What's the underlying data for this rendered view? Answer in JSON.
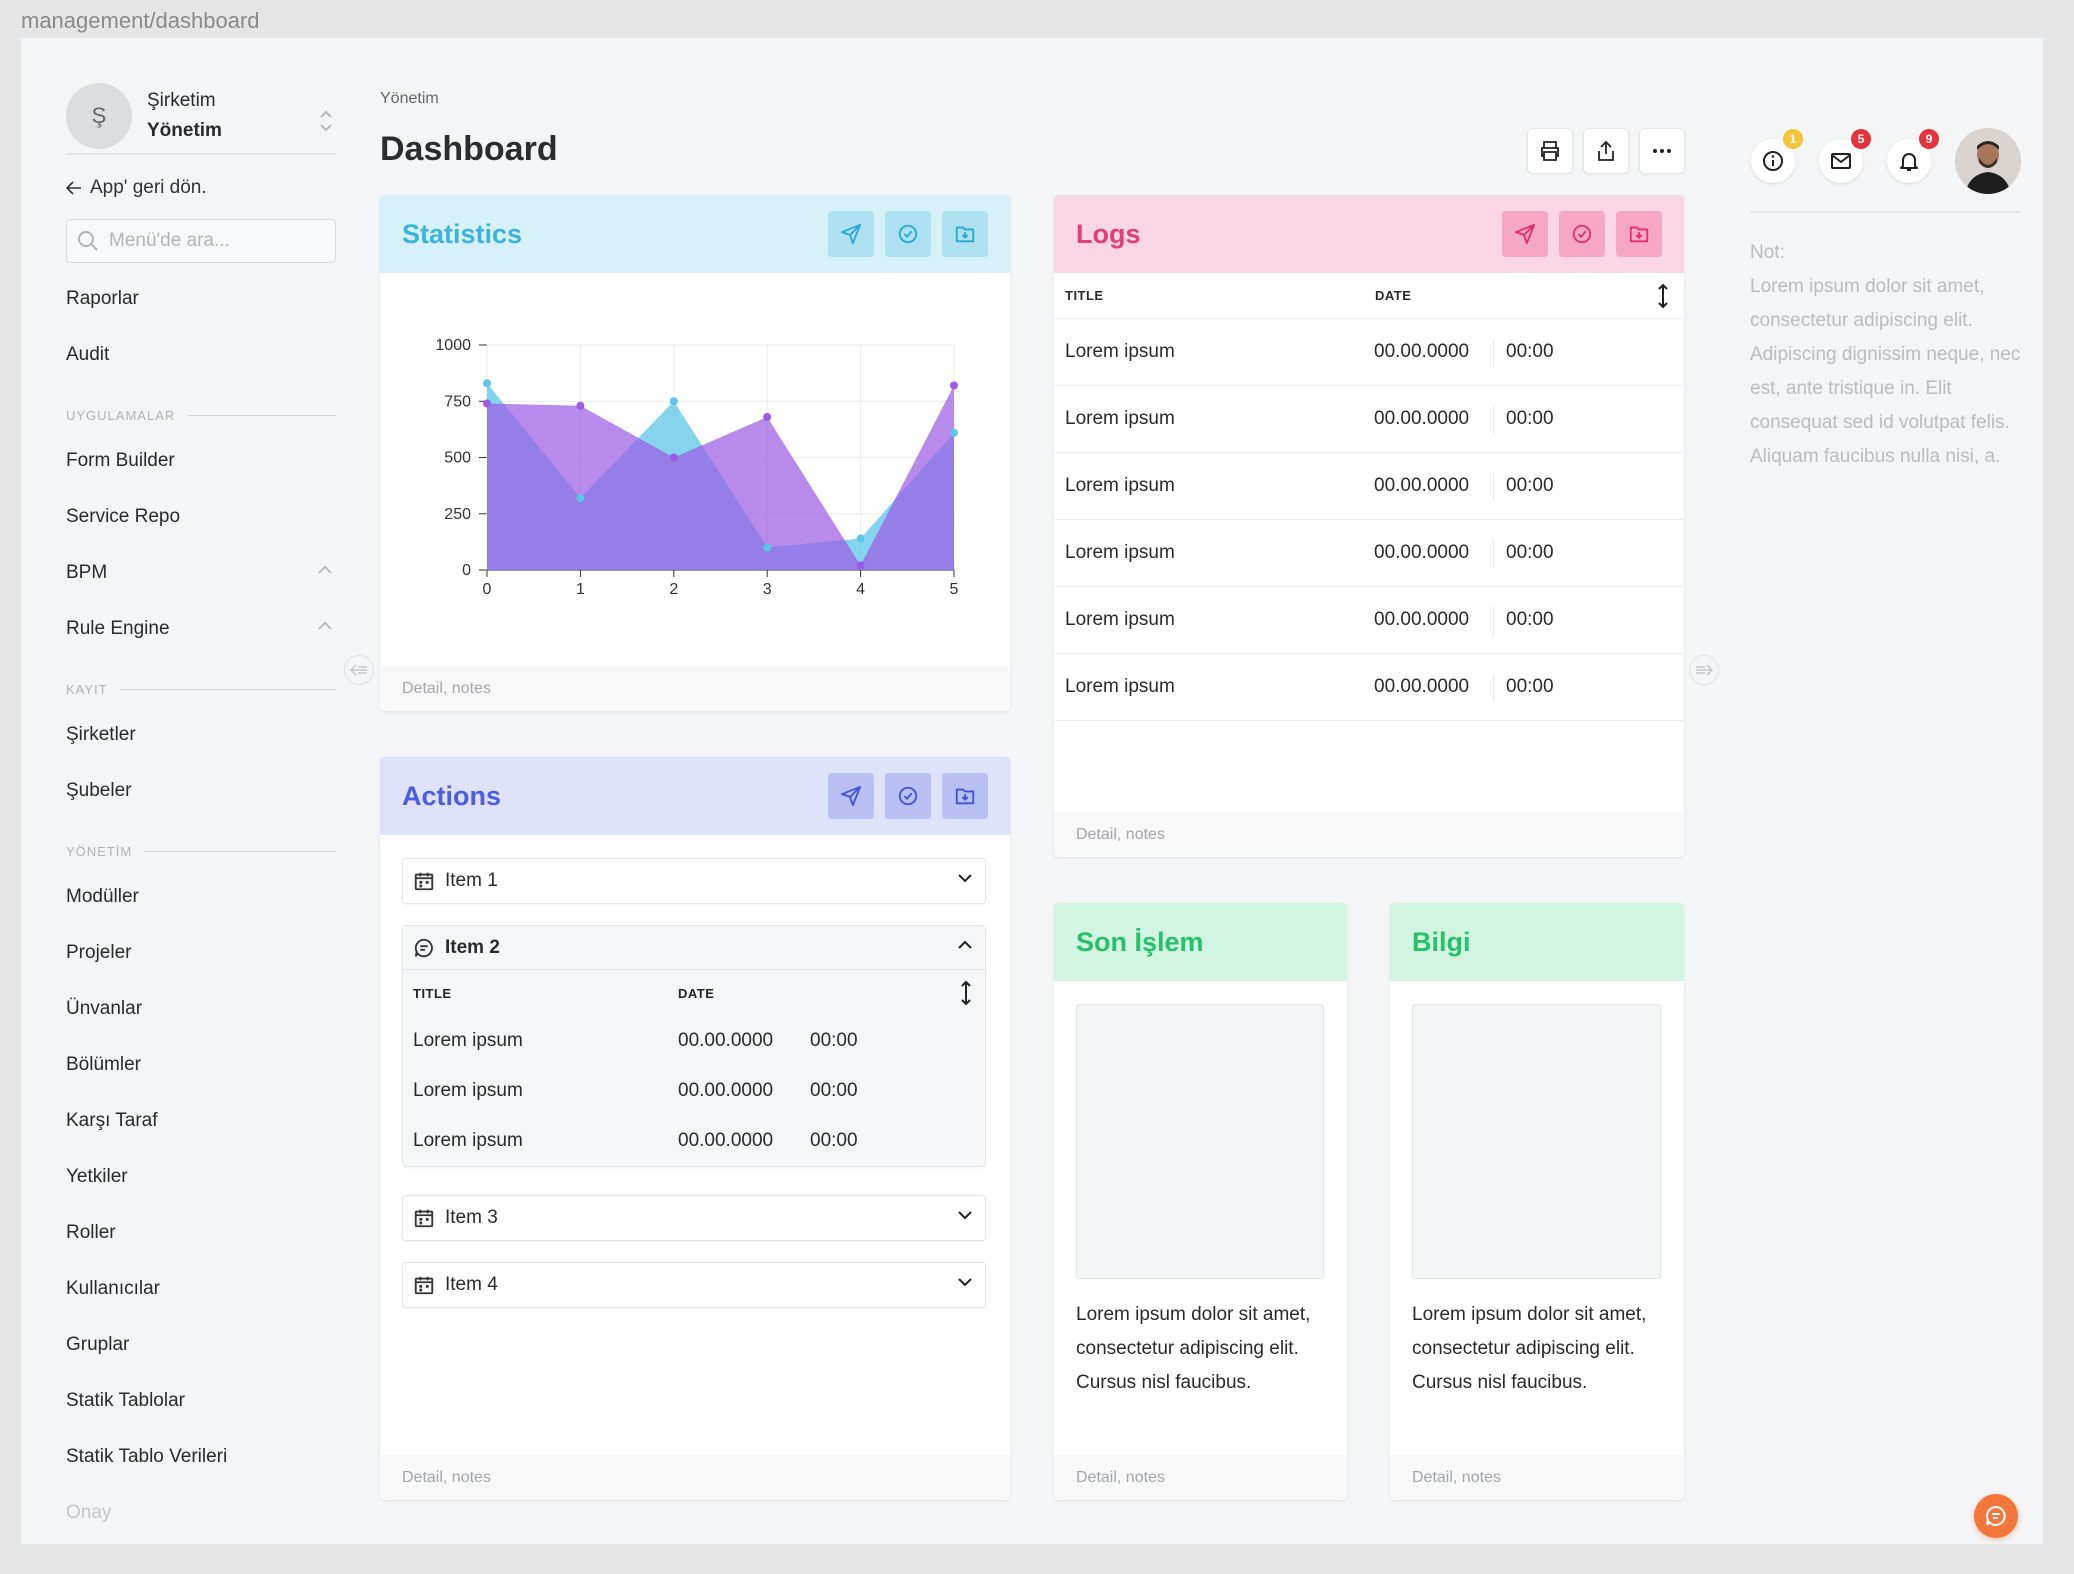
{
  "window": {
    "title": "management/dashboard"
  },
  "sidebar": {
    "company_initial": "Ş",
    "company_name": "Şirketim",
    "company_role": "Yönetim",
    "back_label": "App' geri dön.",
    "search_placeholder": "Menü'de ara...",
    "items_top": [
      {
        "label": "Raporlar"
      },
      {
        "label": "Audit"
      }
    ],
    "sections": [
      {
        "title": "UYGULAMALAR",
        "items": [
          {
            "label": "Form Builder"
          },
          {
            "label": "Service Repo"
          },
          {
            "label": "BPM"
          },
          {
            "label": "Rule Engine"
          }
        ]
      },
      {
        "title": "KAYIT",
        "items": [
          {
            "label": "Şirketler"
          },
          {
            "label": "Şubeler"
          }
        ]
      },
      {
        "title": "YÖNETİM",
        "items": [
          {
            "label": "Modüller"
          },
          {
            "label": "Projeler"
          },
          {
            "label": "Ünvanlar"
          },
          {
            "label": "Bölümler"
          },
          {
            "label": "Karşı Taraf"
          },
          {
            "label": "Yetkiler"
          },
          {
            "label": "Roller"
          },
          {
            "label": "Kullanıcılar"
          },
          {
            "label": "Gruplar"
          },
          {
            "label": "Statik Tablolar"
          },
          {
            "label": "Statik Tablo Verileri"
          },
          {
            "label": "Onay"
          }
        ]
      }
    ]
  },
  "header": {
    "breadcrumb": "Yönetim",
    "title": "Dashboard"
  },
  "topbar": {
    "badges": {
      "info": "1",
      "mail": "5",
      "notifications": "9"
    },
    "badge_colors": {
      "info": "#f5c43b",
      "mail": "#e5333b",
      "notifications": "#e5333b"
    }
  },
  "statistics": {
    "title": "Statistics",
    "footer": "Detail, notes"
  },
  "chart_data": {
    "type": "area",
    "x": [
      0,
      1,
      2,
      3,
      4,
      5
    ],
    "ylim": [
      0,
      1000
    ],
    "yticks": [
      0,
      250,
      500,
      750,
      1000
    ],
    "xticks": [
      0,
      1,
      2,
      3,
      4,
      5
    ],
    "series": [
      {
        "color": "#5cc6e8",
        "values": [
          830,
          320,
          750,
          100,
          140,
          610
        ]
      },
      {
        "color": "#9b5de5",
        "values": [
          740,
          730,
          500,
          680,
          20,
          820
        ]
      }
    ],
    "grid": true
  },
  "logs": {
    "title": "Logs",
    "columns": [
      "TITLE",
      "DATE"
    ],
    "rows": [
      {
        "title": "Lorem ipsum",
        "date": "00.00.0000",
        "time": "00:00"
      },
      {
        "title": "Lorem ipsum",
        "date": "00.00.0000",
        "time": "00:00"
      },
      {
        "title": "Lorem ipsum",
        "date": "00.00.0000",
        "time": "00:00"
      },
      {
        "title": "Lorem ipsum",
        "date": "00.00.0000",
        "time": "00:00"
      },
      {
        "title": "Lorem ipsum",
        "date": "00.00.0000",
        "time": "00:00"
      },
      {
        "title": "Lorem ipsum",
        "date": "00.00.0000",
        "time": "00:00"
      }
    ],
    "footer": "Detail, notes"
  },
  "actions": {
    "title": "Actions",
    "items": [
      {
        "label": "Item 1"
      },
      {
        "label": "Item 2"
      },
      {
        "label": "Item 3"
      },
      {
        "label": "Item 4"
      }
    ],
    "expanded": {
      "columns": [
        "TITLE",
        "DATE"
      ],
      "rows": [
        {
          "title": "Lorem ipsum",
          "date": "00.00.0000",
          "time": "00:00"
        },
        {
          "title": "Lorem ipsum",
          "date": "00.00.0000",
          "time": "00:00"
        },
        {
          "title": "Lorem ipsum",
          "date": "00.00.0000",
          "time": "00:00"
        }
      ]
    },
    "footer": "Detail, notes"
  },
  "son_islem": {
    "title": "Son İşlem",
    "text": "Lorem ipsum dolor sit amet, consectetur adipiscing elit. Cursus nisl faucibus.",
    "footer": "Detail, notes"
  },
  "bilgi": {
    "title": "Bilgi",
    "text": "Lorem ipsum dolor sit amet, consectetur adipiscing elit. Cursus nisl faucibus.",
    "footer": "Detail, notes"
  },
  "note": {
    "label": "Not:",
    "text": "Lorem ipsum dolor sit amet, consectetur adipiscing elit. Adipiscing dignissim neque, nec est, ante tristique in. Elit consequat sed id volutpat felis. Aliquam faucibus nulla nisi, a."
  }
}
